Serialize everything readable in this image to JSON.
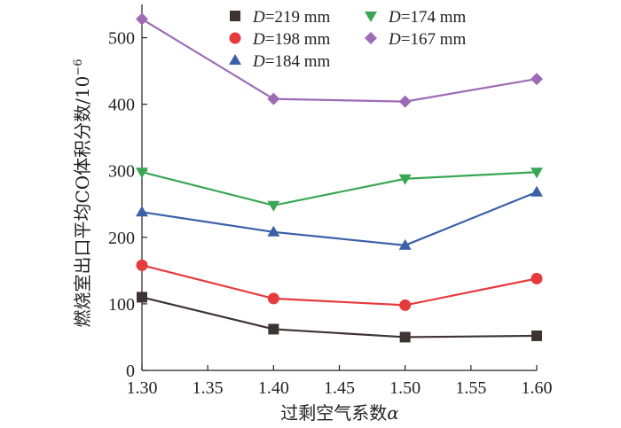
{
  "chart_data": {
    "type": "line",
    "x": [
      1.3,
      1.4,
      1.5,
      1.6
    ],
    "xlim": [
      1.3,
      1.6
    ],
    "ylim": [
      0,
      550
    ],
    "x_ticks": [
      "1.30",
      "1.35",
      "1.40",
      "1.45",
      "1.50",
      "1.55",
      "1.60"
    ],
    "y_ticks": [
      "0",
      "100",
      "200",
      "300",
      "400",
      "500"
    ],
    "xlabel": "过剩空气系数",
    "xlabel_symbol": "α",
    "ylabel": "燃烧室出口平均CO体积分数/10",
    "ylabel_exponent": "−6",
    "grid": false,
    "legend_position": "top-right",
    "series": [
      {
        "name": "D=219 mm",
        "name_var": "D",
        "name_rest": "=219 mm",
        "marker": "square",
        "color": "#3d3331",
        "values": [
          110,
          62,
          50,
          52
        ]
      },
      {
        "name": "D=198 mm",
        "name_var": "D",
        "name_rest": "=198 mm",
        "marker": "circle",
        "color": "#e63b3e",
        "values": [
          158,
          108,
          98,
          138
        ]
      },
      {
        "name": "D=184 mm",
        "name_var": "D",
        "name_rest": "=184 mm",
        "marker": "triangle-up",
        "color": "#3b60a8",
        "values": [
          238,
          208,
          188,
          268
        ]
      },
      {
        "name": "D=174 mm",
        "name_var": "D",
        "name_rest": "=174 mm",
        "marker": "triangle-down",
        "color": "#3aa655",
        "values": [
          298,
          248,
          288,
          298
        ]
      },
      {
        "name": "D=167 mm",
        "name_var": "D",
        "name_rest": "=167 mm",
        "marker": "diamond",
        "color": "#9d6bb6",
        "values": [
          528,
          408,
          404,
          438
        ]
      }
    ]
  }
}
